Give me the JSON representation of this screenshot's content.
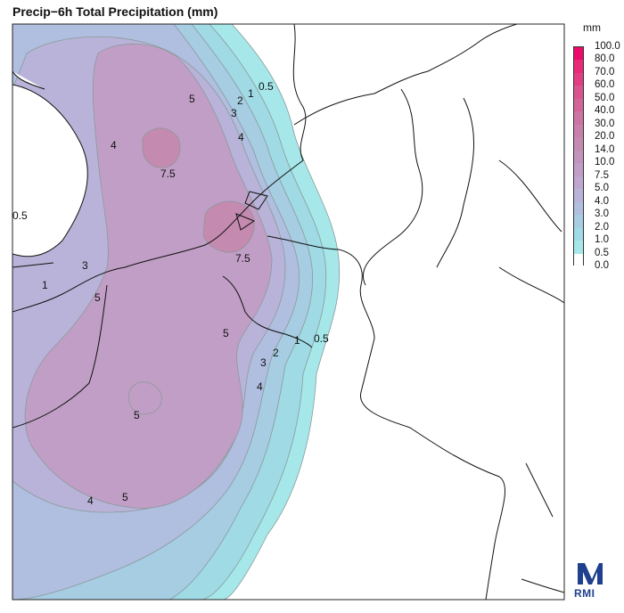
{
  "title": "Precip−6h Total Precipitation (mm)",
  "legend": {
    "unit": "mm",
    "levels": [
      "100.0",
      "80.0",
      "70.0",
      "60.0",
      "50.0",
      "40.0",
      "30.0",
      "20.0",
      "14.0",
      "10.0",
      "7.5",
      "5.0",
      "4.0",
      "3.0",
      "2.0",
      "1.0",
      "0.5",
      "0.0"
    ],
    "colors": [
      "#ee0a6a",
      "#e82a79",
      "#e03d85",
      "#d9538f",
      "#d26499",
      "#cc74a3",
      "#c87fab",
      "#c48ab0",
      "#c294bc",
      "#c19ec6",
      "#bfa7cf",
      "#b9b3d9",
      "#b0bedf",
      "#a6cde2",
      "#9fdae5",
      "#a6e7ea",
      "#ffffff"
    ]
  },
  "contour_labels": [
    {
      "text": "0.5",
      "kind": "label"
    },
    {
      "text": "1",
      "kind": "label"
    },
    {
      "text": "2",
      "kind": "label"
    },
    {
      "text": "3",
      "kind": "label"
    },
    {
      "text": "4",
      "kind": "label"
    },
    {
      "text": "5",
      "kind": "label"
    },
    {
      "text": "7.5",
      "kind": "label"
    }
  ],
  "logo": {
    "text": "RMI",
    "color": "#1f3f8f"
  }
}
